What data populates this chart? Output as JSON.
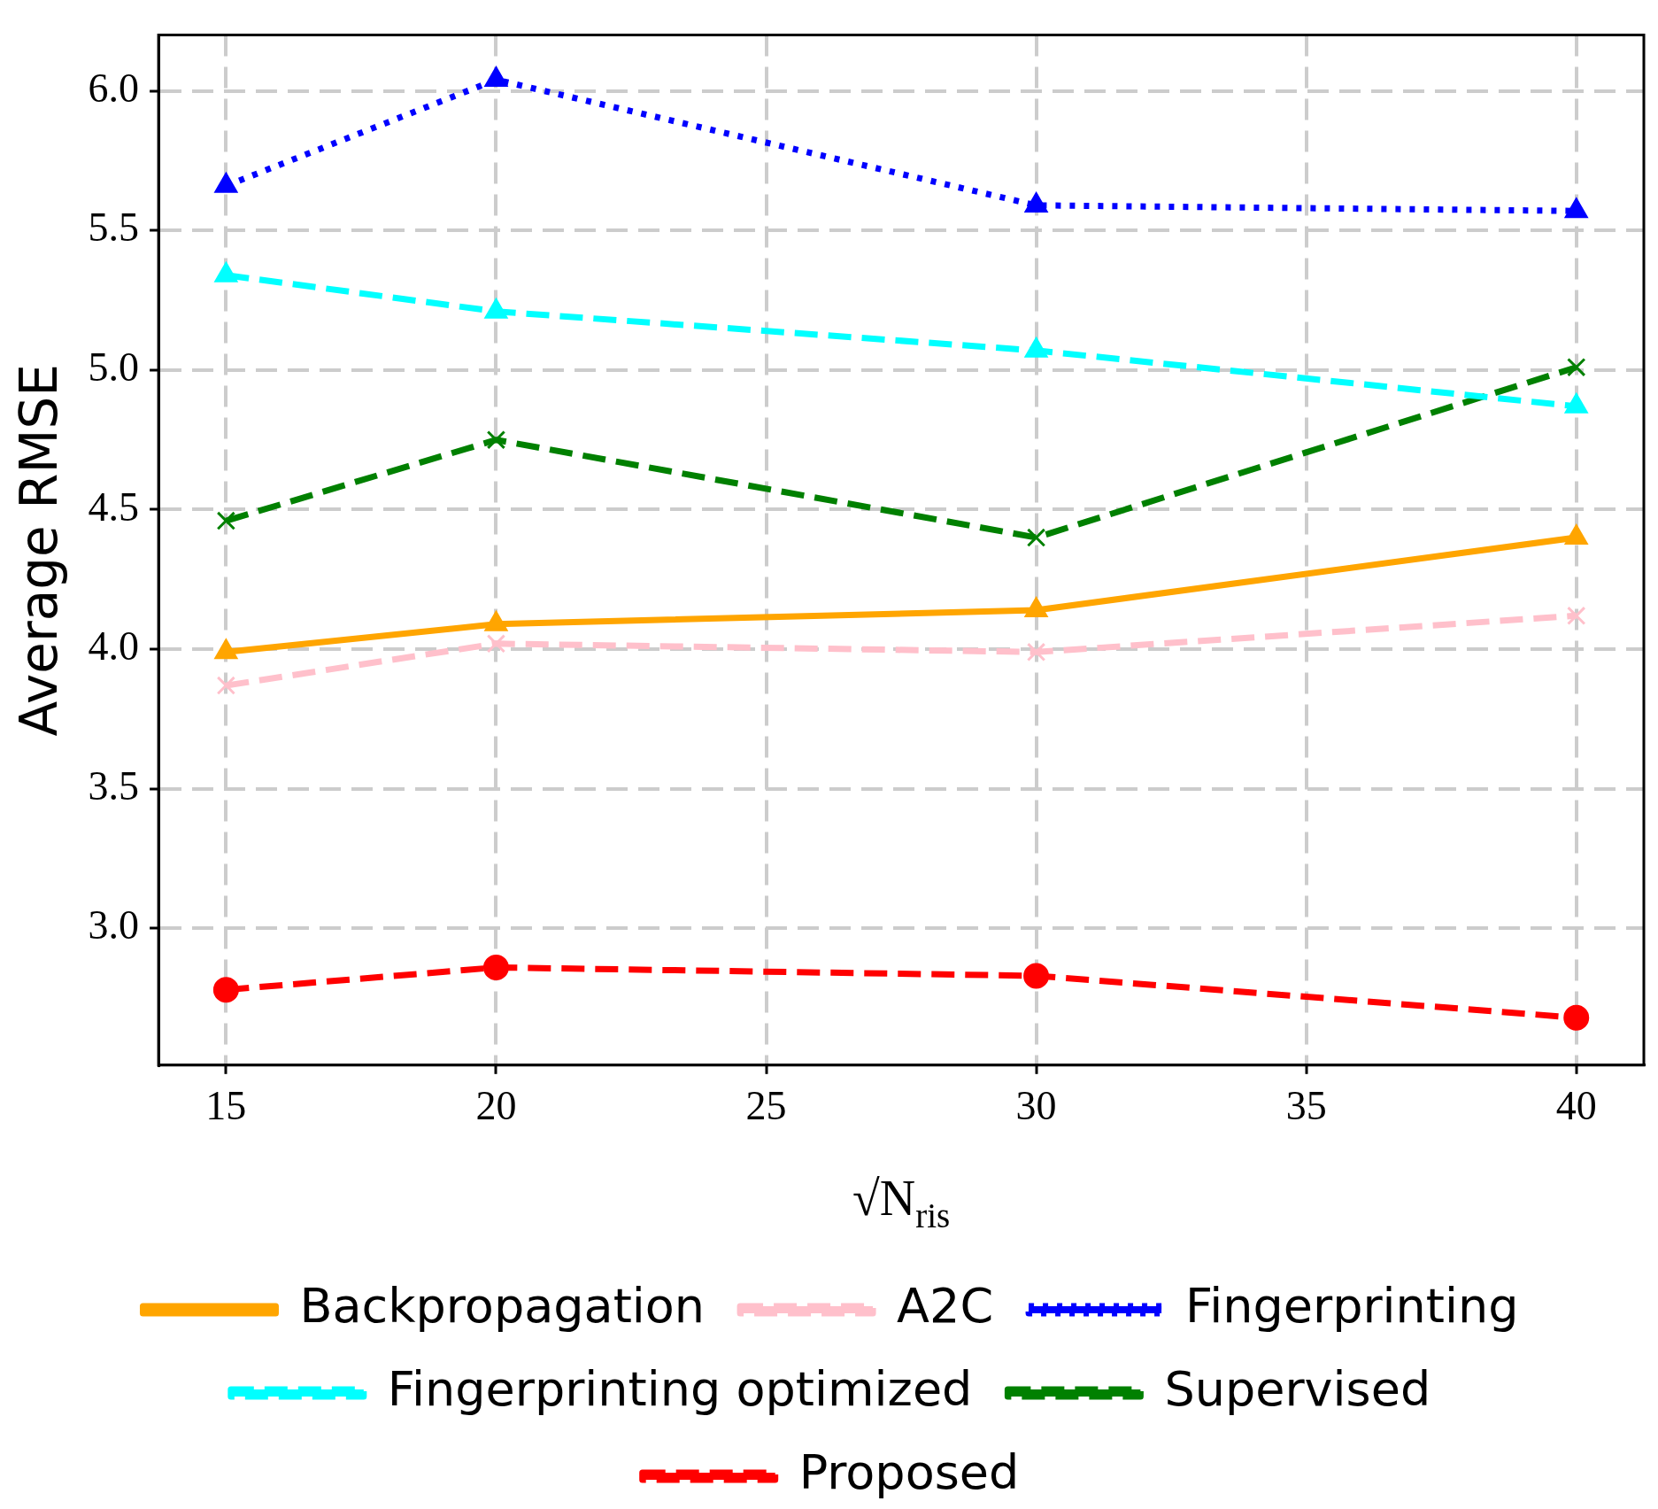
{
  "chart_data": {
    "type": "line",
    "xlabel": "√N$_{ris}$",
    "ylabel": "Average RMSE",
    "x": [
      15,
      20,
      30,
      40
    ],
    "xlim": [
      13.75,
      41.25
    ],
    "xticks": [
      15,
      20,
      25,
      30,
      35,
      40
    ],
    "ylim": [
      2.51,
      6.2
    ],
    "yticks": [
      {
        "value": 3,
        "label": "3.0"
      },
      {
        "value": 3.5,
        "label": "3.5"
      },
      {
        "value": 4,
        "label": "4.0"
      },
      {
        "value": 4.5,
        "label": "4.5"
      },
      {
        "value": 5,
        "label": "5.0"
      },
      {
        "value": 5.5,
        "label": "5.5"
      },
      {
        "value": 6,
        "label": "6.0"
      }
    ],
    "grid": true,
    "legend": "bottom",
    "series": [
      {
        "name": "Backpropagation",
        "color": "#ffa500",
        "marker": "triangle",
        "line_style": "solid",
        "values": [
          3.99,
          4.09,
          4.14,
          4.4
        ]
      },
      {
        "name": "A2C",
        "color": "#ffc0cb",
        "marker": "cross",
        "line_style": "dashed",
        "values": [
          3.87,
          4.02,
          3.99,
          4.12
        ]
      },
      {
        "name": "Fingerprinting",
        "color": "#0000ff",
        "marker": "triangle",
        "line_style": "dotted",
        "values": [
          5.66,
          6.04,
          5.59,
          5.57
        ]
      },
      {
        "name": "Fingerprinting optimized",
        "color": "#00ffff",
        "marker": "triangle",
        "line_style": "dashed",
        "values": [
          5.34,
          5.21,
          5.07,
          4.87
        ]
      },
      {
        "name": "Supervised",
        "color": "#008000",
        "marker": "cross",
        "line_style": "dashed",
        "values": [
          4.46,
          4.75,
          4.4,
          5.01
        ]
      },
      {
        "name": "Proposed",
        "color": "#ff0000",
        "marker": "circle",
        "line_style": "dashed",
        "values": [
          2.78,
          2.86,
          2.83,
          2.68
        ]
      }
    ]
  }
}
